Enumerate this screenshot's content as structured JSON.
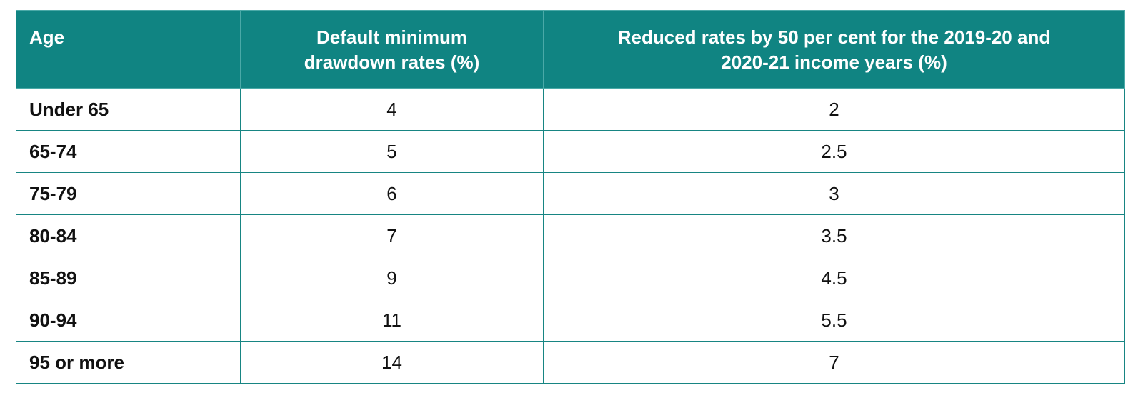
{
  "table": {
    "headers": {
      "age": "Age",
      "default_line1": "Default minimum",
      "default_line2": "drawdown rates (%)",
      "reduced_line1": "Reduced rates by 50 per cent for the 2019-20 and",
      "reduced_line2": "2020-21 income years (%)"
    },
    "rows": [
      {
        "age": "Under 65",
        "default": "4",
        "reduced": "2"
      },
      {
        "age": "65-74",
        "default": "5",
        "reduced": "2.5"
      },
      {
        "age": "75-79",
        "default": "6",
        "reduced": "3"
      },
      {
        "age": "80-84",
        "default": "7",
        "reduced": "3.5"
      },
      {
        "age": "85-89",
        "default": "9",
        "reduced": "4.5"
      },
      {
        "age": "90-94",
        "default": "11",
        "reduced": "5.5"
      },
      {
        "age": "95 or more",
        "default": "14",
        "reduced": "7"
      }
    ]
  },
  "colors": {
    "header_bg": "#108482",
    "border": "#178583",
    "header_text": "#ffffff"
  }
}
